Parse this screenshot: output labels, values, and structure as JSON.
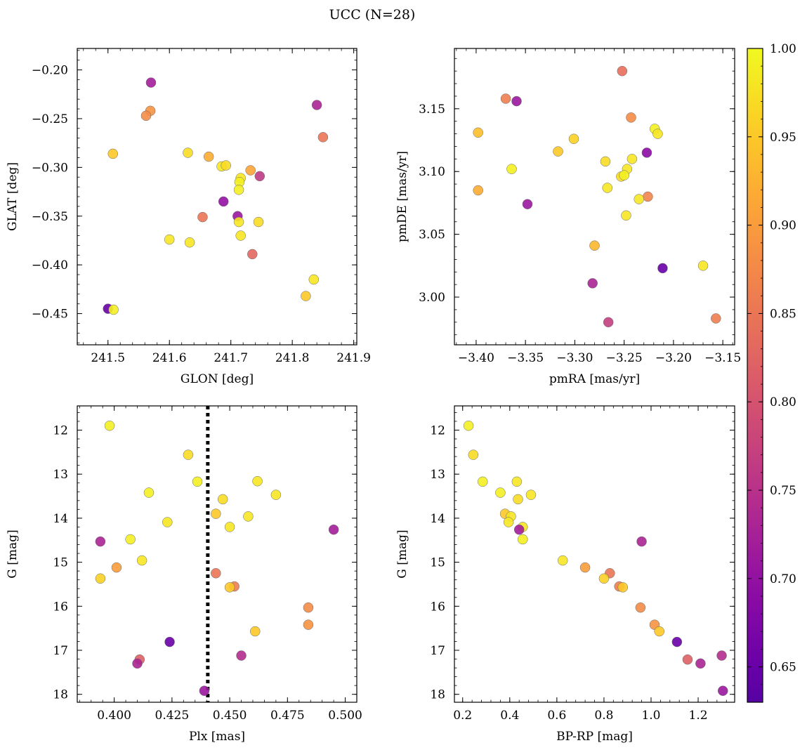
{
  "suptitle": "UCC (N=28)",
  "colorbar": {
    "range": [
      0.63,
      1.0
    ],
    "ticks": [
      0.65,
      0.7,
      0.75,
      0.8,
      0.85,
      0.9,
      0.95,
      1.0
    ],
    "tick_labels": [
      "0.65",
      "0.70",
      "0.75",
      "0.80",
      "0.85",
      "0.90",
      "0.95",
      "1.00"
    ],
    "colormap": "plasma"
  },
  "chart_data": [
    {
      "type": "scatter",
      "id": "glon-glat",
      "xlabel": "GLON [deg]",
      "ylabel": "GLAT [deg]",
      "xlim": [
        241.45,
        241.905
      ],
      "ylim": [
        -0.482,
        -0.178
      ],
      "y_inverted": false,
      "xticks": [
        241.5,
        241.6,
        241.7,
        241.8,
        241.9
      ],
      "xtick_labels": [
        "241.5",
        "241.6",
        "241.7",
        "241.8",
        "241.9"
      ],
      "yticks": [
        -0.45,
        -0.4,
        -0.35,
        -0.3,
        -0.25,
        -0.2
      ],
      "ytick_labels": [
        "−0.45",
        "−0.40",
        "−0.35",
        "−0.30",
        "−0.25",
        "−0.20"
      ],
      "points": [
        {
          "x": 241.57,
          "y": -0.213,
          "c": 0.72
        },
        {
          "x": 241.84,
          "y": -0.236,
          "c": 0.73
        },
        {
          "x": 241.569,
          "y": -0.242,
          "c": 0.89
        },
        {
          "x": 241.562,
          "y": -0.247,
          "c": 0.88
        },
        {
          "x": 241.85,
          "y": -0.269,
          "c": 0.85
        },
        {
          "x": 241.508,
          "y": -0.286,
          "c": 0.95
        },
        {
          "x": 241.63,
          "y": -0.285,
          "c": 0.97
        },
        {
          "x": 241.664,
          "y": -0.289,
          "c": 0.92
        },
        {
          "x": 241.685,
          "y": -0.299,
          "c": 0.98
        },
        {
          "x": 241.692,
          "y": -0.298,
          "c": 0.97
        },
        {
          "x": 241.732,
          "y": -0.303,
          "c": 0.91
        },
        {
          "x": 241.716,
          "y": -0.311,
          "c": 0.98
        },
        {
          "x": 241.714,
          "y": -0.315,
          "c": 0.99
        },
        {
          "x": 241.747,
          "y": -0.309,
          "c": 0.76
        },
        {
          "x": 241.713,
          "y": -0.323,
          "c": 0.99
        },
        {
          "x": 241.688,
          "y": -0.335,
          "c": 0.7
        },
        {
          "x": 241.711,
          "y": -0.35,
          "c": 0.71
        },
        {
          "x": 241.654,
          "y": -0.351,
          "c": 0.85
        },
        {
          "x": 241.713,
          "y": -0.356,
          "c": 0.98
        },
        {
          "x": 241.745,
          "y": -0.356,
          "c": 0.97
        },
        {
          "x": 241.716,
          "y": -0.37,
          "c": 0.98
        },
        {
          "x": 241.6,
          "y": -0.374,
          "c": 0.98
        },
        {
          "x": 241.633,
          "y": -0.377,
          "c": 0.98
        },
        {
          "x": 241.735,
          "y": -0.389,
          "c": 0.83
        },
        {
          "x": 241.835,
          "y": -0.415,
          "c": 0.98
        },
        {
          "x": 241.822,
          "y": -0.432,
          "c": 0.95
        },
        {
          "x": 241.5,
          "y": -0.445,
          "c": 0.65
        },
        {
          "x": 241.509,
          "y": -0.446,
          "c": 0.99
        }
      ]
    },
    {
      "type": "scatter",
      "id": "pmra-pmde",
      "xlabel": "pmRA [mas/yr]",
      "ylabel": "pmDE [mas/yr]",
      "xlim": [
        -3.422,
        -3.138
      ],
      "ylim": [
        2.962,
        3.198
      ],
      "y_inverted": false,
      "xticks": [
        -3.4,
        -3.35,
        -3.3,
        -3.25,
        -3.2,
        -3.15
      ],
      "xtick_labels": [
        "−3.40",
        "−3.35",
        "−3.30",
        "−3.25",
        "−3.20",
        "−3.15"
      ],
      "yticks": [
        3.0,
        3.05,
        3.1,
        3.15
      ],
      "ytick_labels": [
        "3.00",
        "3.05",
        "3.10",
        "3.15"
      ],
      "points": [
        {
          "x": -3.252,
          "y": 3.18,
          "c": 0.84
        },
        {
          "x": -3.37,
          "y": 3.158,
          "c": 0.86
        },
        {
          "x": -3.359,
          "y": 3.156,
          "c": 0.71
        },
        {
          "x": -3.243,
          "y": 3.143,
          "c": 0.88
        },
        {
          "x": -3.219,
          "y": 3.134,
          "c": 0.99
        },
        {
          "x": -3.398,
          "y": 3.131,
          "c": 0.94
        },
        {
          "x": -3.216,
          "y": 3.13,
          "c": 0.98
        },
        {
          "x": -3.301,
          "y": 3.126,
          "c": 0.96
        },
        {
          "x": -3.317,
          "y": 3.116,
          "c": 0.95
        },
        {
          "x": -3.227,
          "y": 3.115,
          "c": 0.69
        },
        {
          "x": -3.242,
          "y": 3.11,
          "c": 0.98
        },
        {
          "x": -3.269,
          "y": 3.108,
          "c": 0.97
        },
        {
          "x": -3.364,
          "y": 3.102,
          "c": 0.99
        },
        {
          "x": -3.247,
          "y": 3.102,
          "c": 0.98
        },
        {
          "x": -3.253,
          "y": 3.096,
          "c": 0.97
        },
        {
          "x": -3.25,
          "y": 3.097,
          "c": 0.99
        },
        {
          "x": -3.267,
          "y": 3.087,
          "c": 0.98
        },
        {
          "x": -3.398,
          "y": 3.085,
          "c": 0.92
        },
        {
          "x": -3.226,
          "y": 3.08,
          "c": 0.87
        },
        {
          "x": -3.235,
          "y": 3.078,
          "c": 0.98
        },
        {
          "x": -3.348,
          "y": 3.074,
          "c": 0.71
        },
        {
          "x": -3.248,
          "y": 3.065,
          "c": 0.98
        },
        {
          "x": -3.28,
          "y": 3.041,
          "c": 0.93
        },
        {
          "x": -3.17,
          "y": 3.025,
          "c": 0.98
        },
        {
          "x": -3.211,
          "y": 3.023,
          "c": 0.65
        },
        {
          "x": -3.282,
          "y": 3.011,
          "c": 0.73
        },
        {
          "x": -3.157,
          "y": 2.983,
          "c": 0.86
        },
        {
          "x": -3.266,
          "y": 2.98,
          "c": 0.77
        }
      ]
    },
    {
      "type": "scatter",
      "id": "plx-g",
      "xlabel": "Plx [mas]",
      "ylabel": "G [mag]",
      "xlim": [
        0.384,
        0.505
      ],
      "ylim": [
        11.45,
        18.18
      ],
      "y_inverted": true,
      "vline": {
        "x": 0.4405,
        "style": "dotted"
      },
      "xticks": [
        0.4,
        0.425,
        0.45,
        0.475,
        0.5
      ],
      "xtick_labels": [
        "0.400",
        "0.425",
        "0.450",
        "0.475",
        "0.500"
      ],
      "yticks": [
        12,
        13,
        14,
        15,
        16,
        17,
        18
      ],
      "ytick_labels": [
        "12",
        "13",
        "14",
        "15",
        "16",
        "17",
        "18"
      ],
      "points": [
        {
          "x": 0.398,
          "y": 11.9,
          "c": 0.99
        },
        {
          "x": 0.432,
          "y": 12.56,
          "c": 0.97
        },
        {
          "x": 0.436,
          "y": 13.17,
          "c": 0.99
        },
        {
          "x": 0.462,
          "y": 13.16,
          "c": 0.98
        },
        {
          "x": 0.415,
          "y": 13.42,
          "c": 0.99
        },
        {
          "x": 0.47,
          "y": 13.47,
          "c": 0.98
        },
        {
          "x": 0.447,
          "y": 13.57,
          "c": 0.97
        },
        {
          "x": 0.444,
          "y": 13.9,
          "c": 0.95
        },
        {
          "x": 0.458,
          "y": 13.96,
          "c": 0.98
        },
        {
          "x": 0.423,
          "y": 14.09,
          "c": 0.98
        },
        {
          "x": 0.45,
          "y": 14.2,
          "c": 0.98
        },
        {
          "x": 0.495,
          "y": 14.26,
          "c": 0.72
        },
        {
          "x": 0.407,
          "y": 14.48,
          "c": 0.99
        },
        {
          "x": 0.394,
          "y": 14.53,
          "c": 0.73
        },
        {
          "x": 0.412,
          "y": 14.96,
          "c": 0.98
        },
        {
          "x": 0.401,
          "y": 15.12,
          "c": 0.9
        },
        {
          "x": 0.444,
          "y": 15.25,
          "c": 0.85
        },
        {
          "x": 0.394,
          "y": 15.37,
          "c": 0.96
        },
        {
          "x": 0.452,
          "y": 15.55,
          "c": 0.86
        },
        {
          "x": 0.45,
          "y": 15.57,
          "c": 0.95
        },
        {
          "x": 0.484,
          "y": 16.03,
          "c": 0.88
        },
        {
          "x": 0.484,
          "y": 16.42,
          "c": 0.89
        },
        {
          "x": 0.461,
          "y": 16.57,
          "c": 0.95
        },
        {
          "x": 0.424,
          "y": 16.81,
          "c": 0.65
        },
        {
          "x": 0.455,
          "y": 17.12,
          "c": 0.74
        },
        {
          "x": 0.411,
          "y": 17.21,
          "c": 0.82
        },
        {
          "x": 0.41,
          "y": 17.3,
          "c": 0.73
        },
        {
          "x": 0.439,
          "y": 17.92,
          "c": 0.71
        }
      ]
    },
    {
      "type": "scatter",
      "id": "bprp-g",
      "xlabel": "BP-RP [mag]",
      "ylabel": "G [mag]",
      "xlim": [
        0.165,
        1.355
      ],
      "ylim": [
        11.45,
        18.18
      ],
      "y_inverted": true,
      "xticks": [
        0.2,
        0.4,
        0.6,
        0.8,
        1.0,
        1.2
      ],
      "xtick_labels": [
        "0.2",
        "0.4",
        "0.6",
        "0.8",
        "1.0",
        "1.2"
      ],
      "yticks": [
        12,
        13,
        14,
        15,
        16,
        17,
        18
      ],
      "ytick_labels": [
        "12",
        "13",
        "14",
        "15",
        "16",
        "17",
        "18"
      ],
      "points": [
        {
          "x": 0.225,
          "y": 11.9,
          "c": 0.99
        },
        {
          "x": 0.245,
          "y": 12.56,
          "c": 0.97
        },
        {
          "x": 0.285,
          "y": 13.17,
          "c": 0.99
        },
        {
          "x": 0.43,
          "y": 13.17,
          "c": 0.98
        },
        {
          "x": 0.36,
          "y": 13.42,
          "c": 0.99
        },
        {
          "x": 0.49,
          "y": 13.47,
          "c": 0.98
        },
        {
          "x": 0.435,
          "y": 13.57,
          "c": 0.97
        },
        {
          "x": 0.38,
          "y": 13.9,
          "c": 0.95
        },
        {
          "x": 0.405,
          "y": 13.96,
          "c": 0.98
        },
        {
          "x": 0.395,
          "y": 14.09,
          "c": 0.98
        },
        {
          "x": 0.455,
          "y": 14.2,
          "c": 0.98
        },
        {
          "x": 0.44,
          "y": 14.26,
          "c": 0.72
        },
        {
          "x": 0.455,
          "y": 14.48,
          "c": 0.99
        },
        {
          "x": 0.96,
          "y": 14.53,
          "c": 0.73
        },
        {
          "x": 0.625,
          "y": 14.96,
          "c": 0.98
        },
        {
          "x": 0.72,
          "y": 15.12,
          "c": 0.9
        },
        {
          "x": 0.825,
          "y": 15.25,
          "c": 0.85
        },
        {
          "x": 0.8,
          "y": 15.37,
          "c": 0.96
        },
        {
          "x": 0.865,
          "y": 15.55,
          "c": 0.86
        },
        {
          "x": 0.88,
          "y": 15.57,
          "c": 0.95
        },
        {
          "x": 0.955,
          "y": 16.03,
          "c": 0.88
        },
        {
          "x": 1.015,
          "y": 16.42,
          "c": 0.89
        },
        {
          "x": 1.035,
          "y": 16.57,
          "c": 0.95
        },
        {
          "x": 1.11,
          "y": 16.81,
          "c": 0.65
        },
        {
          "x": 1.3,
          "y": 17.12,
          "c": 0.74
        },
        {
          "x": 1.155,
          "y": 17.21,
          "c": 0.82
        },
        {
          "x": 1.21,
          "y": 17.3,
          "c": 0.73
        },
        {
          "x": 1.305,
          "y": 17.92,
          "c": 0.71
        }
      ]
    }
  ]
}
